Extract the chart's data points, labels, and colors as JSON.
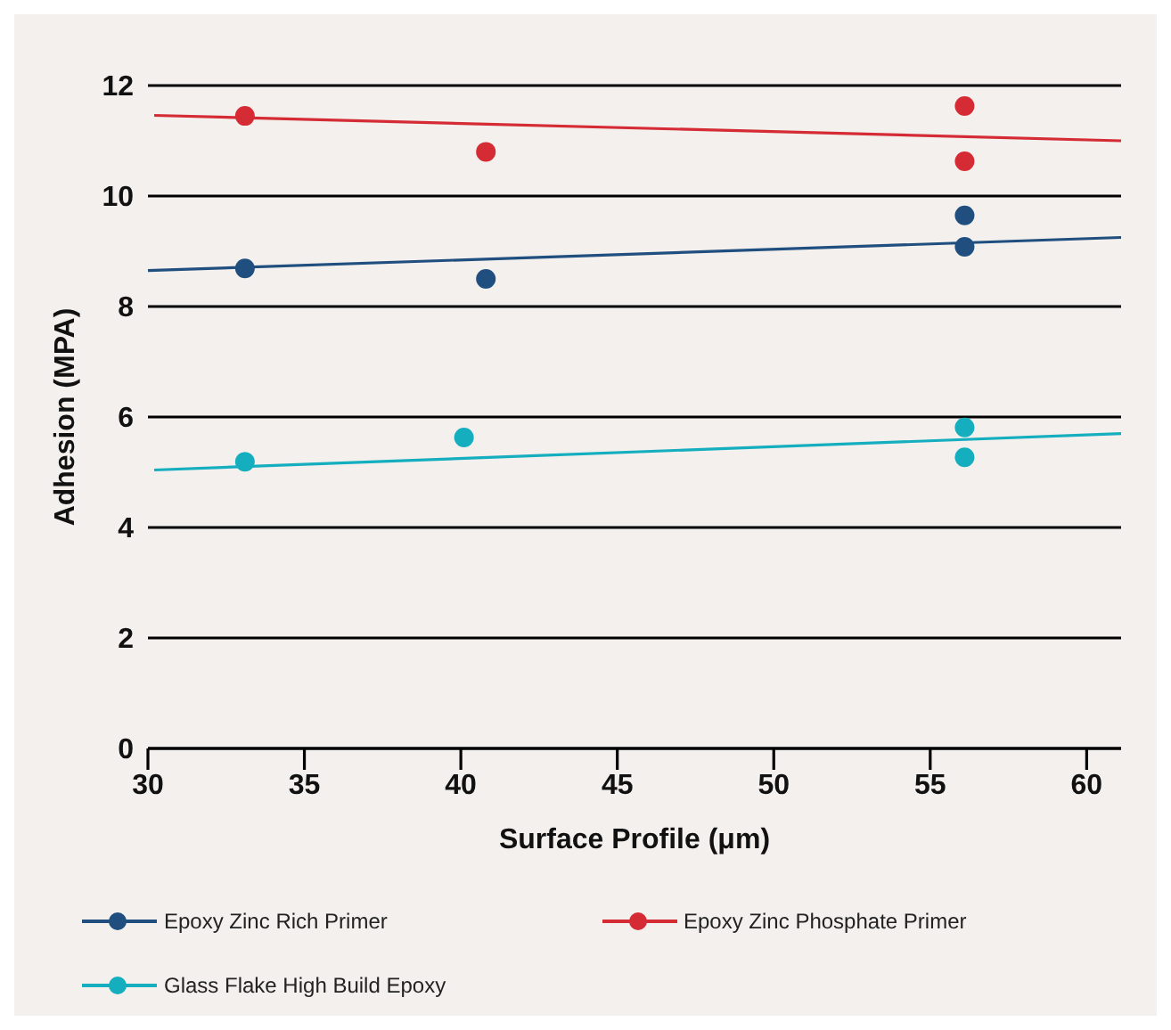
{
  "chart_data": {
    "type": "scatter",
    "xlabel": "Surface Profile (μm)",
    "ylabel": "Adhesion (MPA)",
    "xlim": [
      30,
      61.1
    ],
    "xticks": [
      30,
      35,
      40,
      45,
      50,
      55,
      60
    ],
    "ylim": [
      0,
      12
    ],
    "yticks": [
      0,
      2,
      4,
      6,
      8,
      10,
      12
    ],
    "grid": "y",
    "legend": "bottom",
    "marker": "circle",
    "series": [
      {
        "name": "Epoxy Zinc Rich Primer",
        "color": "#1f4e7f",
        "x": [
          33.1,
          40.8,
          56.1,
          56.1
        ],
        "values": [
          8.69,
          8.5,
          9.65,
          9.08
        ]
      },
      {
        "name": "Epoxy Zinc Phosphate Primer",
        "color": "#d52b35",
        "x": [
          33.1,
          40.8,
          56.1,
          56.1
        ],
        "values": [
          11.45,
          10.8,
          11.63,
          10.63
        ]
      },
      {
        "name": "Glass Flake High Build Epoxy",
        "color": "#14aebf",
        "x": [
          33.1,
          40.1,
          56.1,
          56.1
        ],
        "values": [
          5.19,
          5.63,
          5.81,
          5.27
        ]
      },
      {
        "type": "line",
        "marker": "none",
        "color": "#1f4e7f",
        "x": [
          30,
          61.1
        ],
        "values": [
          8.65,
          9.25
        ]
      },
      {
        "type": "line",
        "marker": "none",
        "color": "#d52b35",
        "x": [
          30.2,
          61.1
        ],
        "values": [
          11.46,
          11.0
        ]
      },
      {
        "type": "line",
        "marker": "none",
        "color": "#14aebf",
        "x": [
          30.2,
          61.1
        ],
        "values": [
          5.04,
          5.7
        ]
      }
    ]
  }
}
